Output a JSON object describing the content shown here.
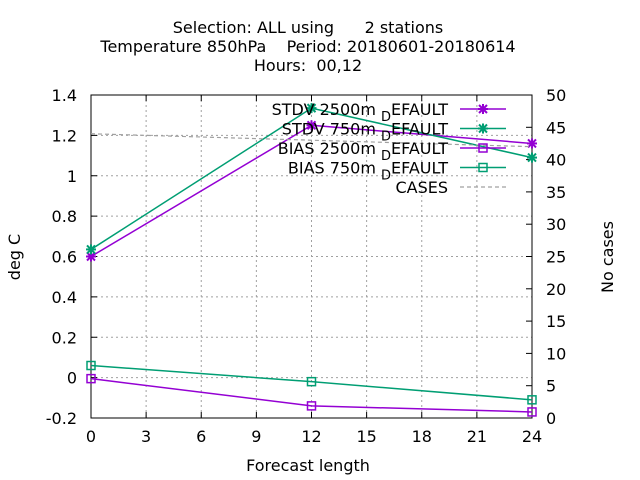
{
  "chart_data": {
    "type": "line",
    "title": [
      "Selection: ALL using      2 stations",
      "Temperature 850hPa    Period: 20180601-20180614",
      "Hours:  00,12"
    ],
    "xlabel": "Forecast length",
    "ylabel": "deg C",
    "y2label": "No cases",
    "xlim": [
      0,
      24
    ],
    "ylim": [
      -0.2,
      1.4
    ],
    "y2lim": [
      0,
      50
    ],
    "xticks": [
      "0",
      "3",
      "6",
      "9",
      "12",
      "15",
      "18",
      "21",
      "24"
    ],
    "yticks": [
      "-0.2",
      "0",
      "0.2",
      "0.4",
      "0.6",
      "0.8",
      "1",
      "1.2",
      "1.4"
    ],
    "y2ticks": [
      "0",
      "5",
      "10",
      "15",
      "20",
      "25",
      "30",
      "35",
      "40",
      "45",
      "50"
    ],
    "grid": true,
    "legend_position": "top-right",
    "series": [
      {
        "name_parts": [
          "STDV 2500m",
          "D",
          "EFAULT"
        ],
        "axis": "left",
        "color": "#9400d3",
        "marker": "x",
        "x": [
          0,
          12,
          24
        ],
        "values": [
          0.6,
          1.25,
          1.16
        ]
      },
      {
        "name_parts": [
          "STDV 750m",
          "D",
          "EFAULT"
        ],
        "axis": "left",
        "color": "#009e73",
        "marker": "x",
        "x": [
          0,
          12,
          24
        ],
        "values": [
          0.635,
          1.335,
          1.09
        ]
      },
      {
        "name_parts": [
          "BIAS 2500m",
          "D",
          "EFAULT"
        ],
        "axis": "left",
        "color": "#9400d3",
        "marker": "square",
        "x": [
          0,
          12,
          24
        ],
        "values": [
          -0.005,
          -0.14,
          -0.17
        ]
      },
      {
        "name_parts": [
          "BIAS 750m",
          "D",
          "EFAULT"
        ],
        "axis": "left",
        "color": "#009e73",
        "marker": "square",
        "x": [
          0,
          12,
          24
        ],
        "values": [
          0.06,
          -0.02,
          -0.11
        ]
      },
      {
        "name_parts": [
          "CASES",
          "",
          ""
        ],
        "axis": "right",
        "color": "#a0a0a0",
        "marker": "none",
        "dashed": true,
        "x": [
          0,
          12,
          24
        ],
        "values": [
          44,
          43,
          42
        ]
      }
    ]
  }
}
